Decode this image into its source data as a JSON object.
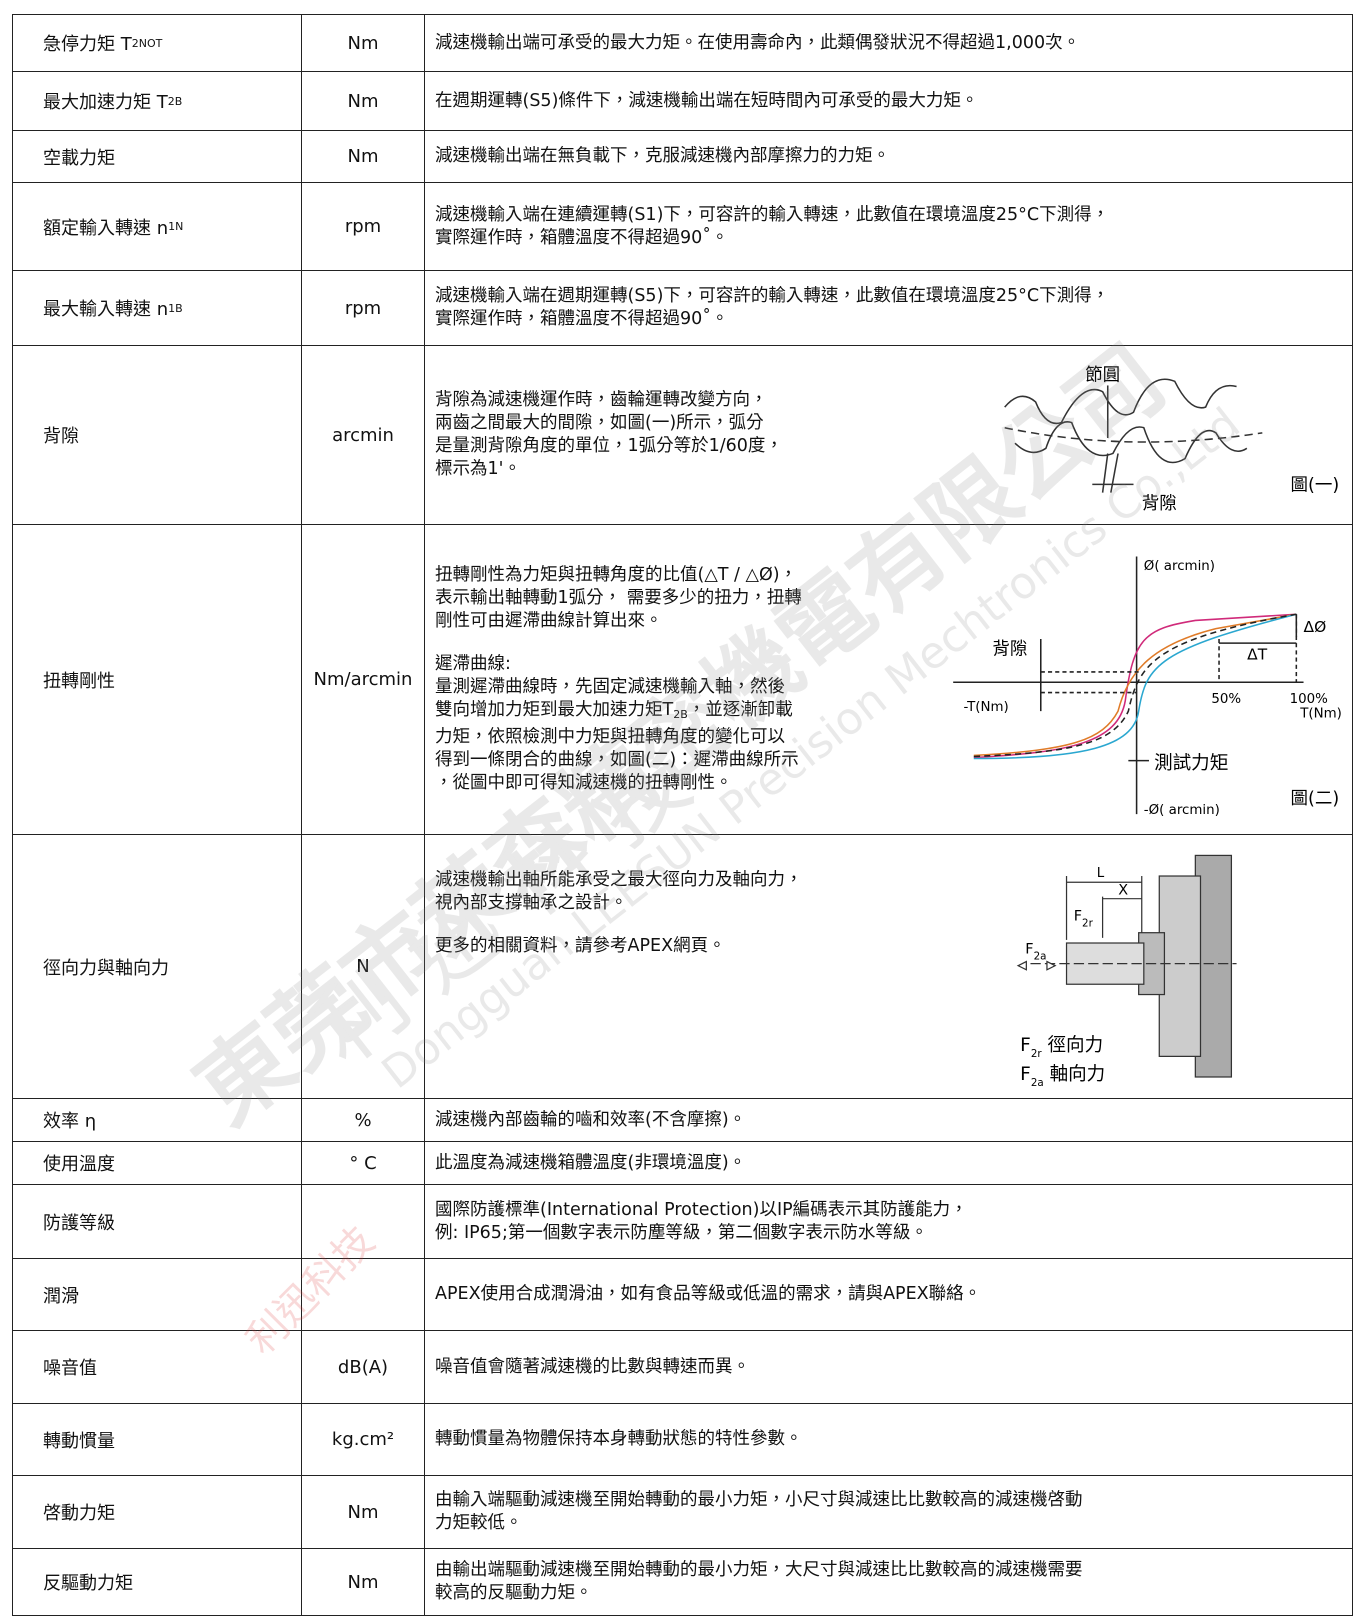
{
  "table": {
    "rows": [
      {
        "label": {
          "before": "急停力矩 T",
          "sub": "2NOT"
        },
        "unit": "Nm",
        "desc": [
          [
            "減速機輸出端可承受的最大力矩。在使用壽命內，此類偶發狀況不得超過1,000次。"
          ]
        ]
      },
      {
        "label": {
          "before": "最大加速力矩 T",
          "sub": "2B"
        },
        "unit": "Nm",
        "desc": [
          [
            "在週期運轉(S5)條件下，減速機輸出端在短時間內可承受的最大力矩。"
          ]
        ]
      },
      {
        "label": "空載力矩",
        "unit": "Nm",
        "desc": [
          [
            "減速機輸出端在無負載下，克服減速機內部摩擦力的力矩。"
          ]
        ]
      },
      {
        "label": {
          "before": "額定輸入轉速 n",
          "sub": "1N"
        },
        "unit": "rpm",
        "desc": [
          [
            "減速機輸入端在連續運轉(S1)下，可容許的輸入轉速，此數值在環境溫度25°C下測得，",
            "實際運作時，箱體溫度不得超過90˚。"
          ]
        ]
      },
      {
        "label": {
          "before": "最大輸入轉速 n",
          "sub": "1B"
        },
        "unit": "rpm",
        "desc": [
          [
            "減速機輸入端在週期運轉(S5)下，可容許的輸入轉速，此數值在環境溫度25°C下測得，",
            "實際運作時，箱體溫度不得超過90˚。"
          ]
        ]
      },
      {
        "label": "背隙",
        "unit": "arcmin",
        "desc": [
          [
            "背隙為減速機運作時，齒輪運轉改變方向，",
            "兩齒之間最大的間隙，如圖(一)所示，弧分",
            "是量測背隙角度的單位，1弧分等於1/60度，",
            "標示為1'。"
          ]
        ]
      },
      {
        "label": "扭轉剛性",
        "unit": "Nm/arcmin",
        "desc": [
          [
            "扭轉剛性為力矩與扭轉角度的比值(△T / △Ø)，",
            "表示輸出軸轉動1弧分， 需要多少的扭力，扭轉",
            "剛性可由遲滯曲線計算出來。"
          ],
          [
            "遲滯曲線:",
            "量測遲滯曲線時，先固定減速機輸入軸，然後",
            {
              "before": "雙向增加力矩到最大加速力矩T",
              "sub": "2B",
              "after": "，並逐漸卸載"
            },
            "力矩，依照檢測中力矩與扭轉角度的變化可以",
            "得到一條閉合的曲線，如圖(二)：遲滯曲線所示",
            "，從圖中即可得知減速機的扭轉剛性。"
          ]
        ]
      },
      {
        "label": "徑向力與軸向力",
        "unit": "N",
        "desc": [
          [
            "減速機輸出軸所能承受之最大徑向力及軸向力，",
            "視內部支撐軸承之設計。"
          ],
          [
            "更多的相關資料，請參考APEX網頁。"
          ]
        ]
      },
      {
        "label": "效率 η",
        "unit": "%",
        "desc": [
          [
            "減速機內部齒輪的嚙和效率(不含摩擦)。"
          ]
        ]
      },
      {
        "label": "使用溫度",
        "unit": "° C",
        "desc": [
          [
            "此溫度為減速機箱體溫度(非環境溫度)。"
          ]
        ]
      },
      {
        "label": "防護等級",
        "desc": [
          [
            "國際防護標準(International Protection)以IP編碼表示其防護能力，",
            "例: IP65;第一個數字表示防塵等級，第二個數字表示防水等級。"
          ]
        ]
      },
      {
        "label": "潤滑",
        "desc": [
          [
            "APEX使用合成潤滑油，如有食品等級或低溫的需求，請與APEX聯絡。"
          ]
        ]
      },
      {
        "label": "噪音值",
        "unit": "dB(A)",
        "desc": [
          [
            "噪音值會隨著減速機的比數與轉速而異。"
          ]
        ]
      },
      {
        "label": "轉動慣量",
        "unit": "kg.cm²",
        "desc": [
          [
            "轉動慣量為物體保持本身轉動狀態的特性參數。"
          ]
        ]
      },
      {
        "label": "啓動力矩",
        "unit": "Nm",
        "desc": [
          [
            "由輸入端驅動減速機至開始轉動的最小力矩，小尺寸與減速比比數較高的減速機啓動",
            "力矩較低。"
          ]
        ]
      },
      {
        "label": "反驅動力矩",
        "unit": "Nm",
        "desc": [
          [
            "由輸出端驅動減速機至開始轉動的最小力矩，大尺寸與減速比比數較高的減速機需要",
            "較高的反驅動力矩。"
          ]
        ]
      }
    ]
  },
  "figure1": {
    "pitch": "節圓",
    "backlash": "背隙",
    "caption": "圖(一)"
  },
  "figure2": {
    "y_axis": "Ø( arcmin)",
    "y_neg": "-Ø( arcmin)",
    "x_axis": "T(Nm)",
    "x_neg": "-T(Nm)",
    "delta_phi": "ΔØ",
    "delta_t": "ΔT",
    "backlash": "背隙",
    "half": "50%",
    "full": "100%",
    "test_torque": "測試力矩",
    "caption": "圖(二)"
  },
  "figure3": {
    "length": "L",
    "offset": "X",
    "radial_symbol": {
      "before": "F",
      "sub": "2r"
    },
    "axial_symbol": {
      "before": "F",
      "sub": "2a"
    },
    "legend": [
      {
        "before": "F",
        "sub": "2r",
        "after": " 徑向力"
      },
      {
        "before": "F",
        "sub": "2a",
        "after": " 軸向力"
      }
    ]
  },
  "watermark": {
    "company": "東莞市萊森精密機電有限公司",
    "english": "Dongguan LEESUN Precision Mechtronics Co.,Ltd",
    "brand": "利迅科技",
    "brand2": "利 迅 科 技"
  }
}
